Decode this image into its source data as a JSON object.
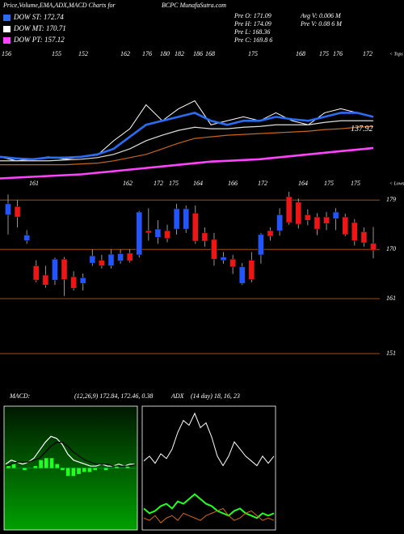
{
  "header": {
    "title": "Price,Volume,EMA,ADX,MACD Charts for",
    "site": "BCPC MunafaSutra.com"
  },
  "legend": [
    {
      "label": "DOW ST: 172.74",
      "color": "#2a6df4"
    },
    {
      "label": "DOW MT: 170.71",
      "color": "#ffffff"
    },
    {
      "label": "DOW PT: 157.12",
      "color": "#ff44ff"
    }
  ],
  "stats": [
    {
      "left": "Pre  O: 171.09",
      "right": "Avg V: 0.006  M"
    },
    {
      "left": "Pre  H: 174.09",
      "right": "Pre  V: 0.08     6  M"
    },
    {
      "left": "Pre  L: 168.36"
    },
    {
      "left": "Pre  C: 169.8     6"
    }
  ],
  "chart_data": [
    {
      "type": "line",
      "ylim": [
        90,
        248
      ],
      "level": 137.92,
      "tops_label": "< Tops",
      "tops": [
        "156",
        "155",
        "152",
        "162",
        "176",
        "180",
        "182",
        "186",
        "168",
        "175",
        "168",
        "175",
        "176",
        "172"
      ],
      "lows_label": "< Lows",
      "lows": [
        "161",
        "162",
        "172",
        "175",
        "164",
        "166",
        "172",
        "164",
        "175",
        "175"
      ],
      "series": [
        {
          "color": "#ffffff",
          "values": [
            127.2,
            122.7,
            124.5,
            127.2,
            124.5,
            127.2,
            129,
            145.1,
            158.5,
            185.2,
            167.4,
            180.8,
            189.7,
            162.9,
            167.4,
            171.8,
            167.4,
            176.3,
            167.4,
            162.9,
            176.3,
            180.8,
            176.3,
            171.8
          ]
        },
        {
          "color": "#2a6df4",
          "values": [
            127.2,
            125.4,
            124.5,
            126.3,
            126.3,
            127.2,
            129.9,
            136.1,
            149.5,
            162.9,
            167.4,
            171.8,
            176.3,
            167.4,
            162.9,
            167.4,
            167.4,
            171.8,
            169.1,
            167.4,
            171.8,
            176.3,
            176.3,
            171.8
          ]
        },
        {
          "color": "#dddddd",
          "values": [
            122.7,
            122.7,
            122.7,
            122.7,
            123.6,
            124.5,
            126.3,
            129.9,
            136.1,
            145.1,
            151.3,
            156.7,
            160.2,
            158.5,
            158.5,
            160.2,
            161.1,
            162.9,
            162.9,
            162.9,
            165.6,
            167.4,
            167.4,
            167.4
          ]
        },
        {
          "color": "#c8661a",
          "values": [
            118.3,
            118.3,
            118.3,
            118.3,
            118.3,
            119.2,
            120.1,
            122.7,
            126.3,
            129.9,
            136.1,
            142.4,
            147.7,
            149.5,
            151.3,
            152.2,
            153.1,
            154,
            154.9,
            155.8,
            157.6,
            158.5,
            160.2,
            161.1
          ]
        },
        {
          "color": "#ff44ff",
          "values": [
            103.1,
            104,
            104.9,
            105.8,
            106.7,
            107.6,
            109.4,
            111.1,
            112.9,
            114.7,
            116.5,
            118.3,
            120.1,
            121.9,
            122.7,
            123.6,
            124.5,
            126.3,
            128.1,
            129.9,
            131.7,
            133.5,
            135.2,
            137
          ]
        }
      ]
    },
    {
      "type": "candlestick",
      "ylim": [
        147.6,
        180.8
      ],
      "yticks": [
        151,
        161,
        170,
        179
      ],
      "up_color": "#2255ff",
      "down_color": "#ee1515",
      "level_color": "#a05010",
      "open": [
        176.3,
        177.8,
        171.6,
        167,
        165.3,
        164.4,
        168.2,
        165,
        163.8,
        167.5,
        168,
        167,
        167.9,
        169.3,
        169,
        173.4,
        172.2,
        173.4,
        173.7,
        173.7,
        176.6,
        173,
        171.8,
        168,
        168.2,
        163.8,
        168,
        169,
        173.4,
        173.4,
        179.6,
        178.6,
        176.3,
        175.9,
        175.9,
        175.6,
        175.9,
        174.9,
        173.2,
        171.09
      ],
      "high": [
        180,
        179,
        173.5,
        168,
        167,
        168.5,
        168.6,
        166,
        165.6,
        170,
        169,
        170,
        170,
        170,
        177,
        177.5,
        175.3,
        174.5,
        178.3,
        178,
        178,
        174,
        173,
        169.5,
        169,
        167.5,
        169.5,
        173,
        174,
        177.5,
        180.5,
        179.3,
        177.3,
        176.6,
        176.8,
        177.5,
        176.5,
        175.5,
        174,
        174.09
      ],
      "low": [
        172.7,
        174,
        171,
        164,
        163,
        163.5,
        161.5,
        162.5,
        162.5,
        167,
        166.5,
        166.5,
        167.4,
        167.6,
        168.5,
        171.6,
        171,
        171.3,
        172.7,
        173,
        171,
        170.5,
        167,
        167.4,
        165.5,
        163.5,
        164,
        167.4,
        171.6,
        172.5,
        174.5,
        173.8,
        174.4,
        172.6,
        173.5,
        173.5,
        172.4,
        170.7,
        170.5,
        168.36
      ],
      "close": [
        178.3,
        175.9,
        172.6,
        164.4,
        163.5,
        168.2,
        164.5,
        162.9,
        164.8,
        168.8,
        167,
        169.1,
        169.2,
        167.9,
        176.8,
        173,
        173.7,
        172,
        177.4,
        177.4,
        171.5,
        171.5,
        168.2,
        168.6,
        166.8,
        166.8,
        164.5,
        172.7,
        172.4,
        176.3,
        174.9,
        174.6,
        175.3,
        173.7,
        174.7,
        176.8,
        172.7,
        171.6,
        171.2,
        169.86
      ]
    },
    {
      "type": "macd",
      "title": "MACD:",
      "subtitle": "(12,26,9) 172.84, 172.46, 0.38",
      "ylim": [
        -3,
        3
      ],
      "histogram": {
        "color": "#22ff22",
        "values": [
          0.1,
          0.2,
          0,
          -0.1,
          0,
          0.1,
          0.4,
          0.5,
          0.5,
          0.2,
          -0.1,
          -0.4,
          -0.4,
          -0.3,
          -0.2,
          -0.2,
          -0.1,
          0,
          -0.1,
          0,
          0.1,
          0,
          0.1,
          0
        ]
      },
      "series": [
        {
          "color": "#ffffff",
          "values": [
            0.2,
            0.4,
            0.3,
            0.2,
            0.3,
            0.5,
            0.9,
            1.3,
            1.6,
            1.5,
            1.2,
            0.7,
            0.4,
            0.3,
            0.2,
            0.1,
            0.1,
            0.2,
            0.1,
            0.1,
            0.2,
            0.1,
            0.2,
            0.2
          ]
        },
        {
          "color": "#000000",
          "values": [
            0.1,
            0.2,
            0.3,
            0.3,
            0.3,
            0.4,
            0.5,
            0.8,
            1.1,
            1.3,
            1.3,
            1.1,
            0.8,
            0.6,
            0.4,
            0.3,
            0.2,
            0.2,
            0.2,
            0.1,
            0.1,
            0.1,
            0.1,
            0.2
          ]
        }
      ]
    },
    {
      "type": "adx",
      "title": "ADX",
      "subtitle": "(14 day) 18, 16, 23",
      "ylim": [
        0,
        50
      ],
      "series": [
        {
          "color": "#ffffff",
          "values": [
            28,
            30,
            27,
            31,
            29,
            33,
            40,
            45,
            43,
            48,
            42,
            44,
            38,
            30,
            26,
            30,
            36,
            33,
            30,
            28,
            26,
            30,
            27,
            30
          ]
        },
        {
          "color": "#22ff22",
          "values": [
            8,
            6,
            7,
            9,
            10,
            8,
            11,
            10,
            12,
            14,
            12,
            10,
            9,
            7,
            6,
            5,
            7,
            8,
            6,
            5,
            4,
            6,
            5,
            6
          ]
        },
        {
          "color": "#d2691e",
          "values": [
            4,
            3,
            5,
            2,
            4,
            5,
            3,
            6,
            5,
            4,
            3,
            5,
            6,
            7,
            8,
            5,
            3,
            4,
            6,
            7,
            5,
            3,
            4,
            3
          ]
        }
      ]
    }
  ]
}
